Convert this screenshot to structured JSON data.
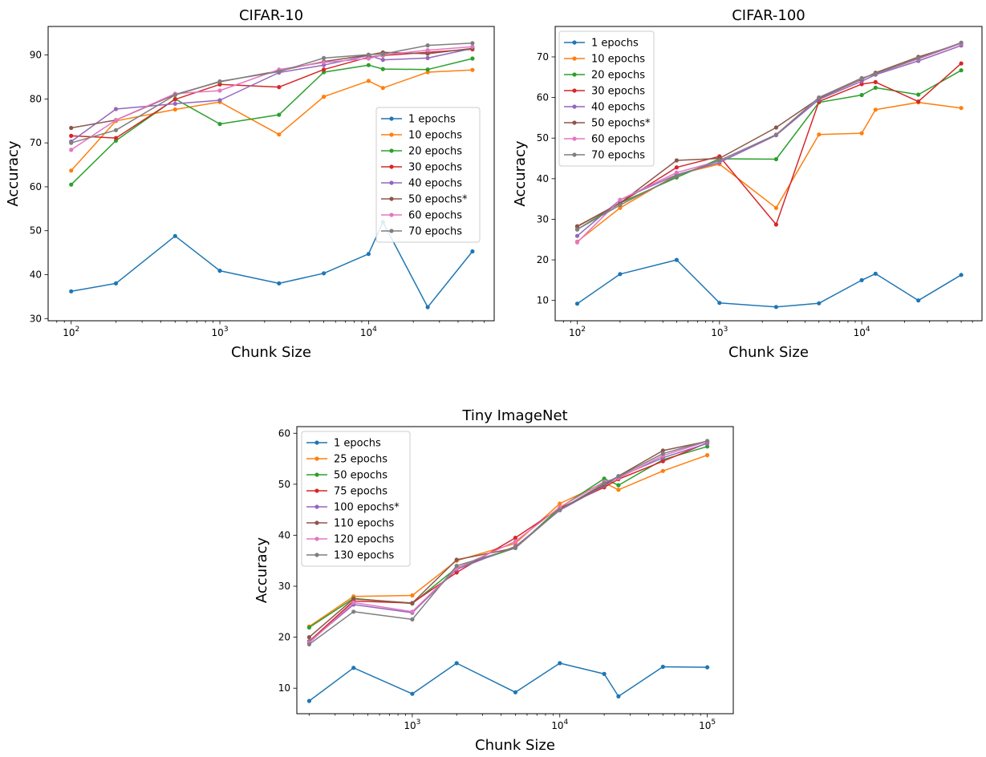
{
  "palette": [
    "#1f77b4",
    "#ff7f0e",
    "#2ca02c",
    "#d62728",
    "#9467bd",
    "#8c564b",
    "#e377c2",
    "#7f7f7f"
  ],
  "chart_data": [
    {
      "type": "line",
      "title": "CIFAR-10",
      "xlabel": "Chunk Size",
      "ylabel": "Accuracy",
      "xscale": "log",
      "xlim": [
        70,
        70000
      ],
      "ylim": [
        29.5,
        96.5
      ],
      "xticks": [
        100,
        1000,
        10000
      ],
      "xtick_labels": [
        {
          "base": "10",
          "exp": "2"
        },
        {
          "base": "10",
          "exp": "3"
        },
        {
          "base": "10",
          "exp": "4"
        }
      ],
      "yticks": [
        30,
        40,
        50,
        60,
        70,
        80,
        90
      ],
      "ytick_labels": [
        "30",
        "40",
        "50",
        "60",
        "70",
        "80",
        "90"
      ],
      "legend_position": "center-right",
      "x": [
        100,
        200,
        500,
        1000,
        2500,
        5000,
        10000,
        12500,
        25000,
        50000
      ],
      "series": [
        {
          "name": "1 epochs",
          "values": [
            36.2,
            38.0,
            48.8,
            40.9,
            38.0,
            40.3,
            44.7,
            52.0,
            32.6,
            45.3
          ]
        },
        {
          "name": "10 epochs",
          "values": [
            63.7,
            75.0,
            77.6,
            79.3,
            71.9,
            80.5,
            84.1,
            82.5,
            86.1,
            86.6
          ]
        },
        {
          "name": "20 epochs",
          "values": [
            60.5,
            70.5,
            80.0,
            74.3,
            76.4,
            86.1,
            87.7,
            86.8,
            86.7,
            89.2
          ]
        },
        {
          "name": "30 epochs",
          "values": [
            71.6,
            71.1,
            79.9,
            83.3,
            82.7,
            86.7,
            89.5,
            89.9,
            90.6,
            91.3
          ]
        },
        {
          "name": "40 epochs",
          "values": [
            70.3,
            77.7,
            78.9,
            79.7,
            86.0,
            87.7,
            89.9,
            88.9,
            89.3,
            91.5
          ]
        },
        {
          "name": "50 epochs*",
          "values": [
            73.4,
            75.2,
            81.0,
            83.9,
            86.4,
            88.5,
            90.0,
            90.6,
            90.3,
            91.5
          ]
        },
        {
          "name": "60 epochs",
          "values": [
            68.4,
            75.2,
            81.2,
            81.9,
            86.7,
            88.3,
            89.2,
            90.0,
            91.1,
            91.9
          ]
        },
        {
          "name": "70 epochs",
          "values": [
            70.0,
            72.9,
            80.9,
            84.0,
            86.2,
            89.3,
            90.1,
            90.2,
            92.2,
            92.7
          ]
        }
      ]
    },
    {
      "type": "line",
      "title": "CIFAR-100",
      "xlabel": "Chunk Size",
      "ylabel": "Accuracy",
      "xscale": "log",
      "xlim": [
        70,
        70000
      ],
      "ylim": [
        5,
        77.5
      ],
      "xticks": [
        100,
        1000,
        10000
      ],
      "xtick_labels": [
        {
          "base": "10",
          "exp": "2"
        },
        {
          "base": "10",
          "exp": "3"
        },
        {
          "base": "10",
          "exp": "4"
        }
      ],
      "yticks": [
        10,
        20,
        30,
        40,
        50,
        60,
        70
      ],
      "ytick_labels": [
        "10",
        "20",
        "30",
        "40",
        "50",
        "60",
        "70"
      ],
      "legend_position": "top-left",
      "x": [
        100,
        200,
        500,
        1000,
        2500,
        5000,
        10000,
        12500,
        25000,
        50000
      ],
      "series": [
        {
          "name": "1 epochs",
          "values": [
            9.2,
            16.5,
            20.0,
            9.4,
            8.4,
            9.3,
            15.0,
            16.6,
            10.0,
            16.3
          ]
        },
        {
          "name": "10 epochs",
          "values": [
            24.5,
            32.8,
            41.0,
            43.6,
            32.8,
            50.9,
            51.2,
            57.0,
            58.8,
            57.4
          ]
        },
        {
          "name": "20 epochs",
          "values": [
            27.5,
            34.0,
            40.3,
            44.9,
            44.8,
            58.8,
            60.6,
            62.4,
            60.7,
            66.7
          ]
        },
        {
          "name": "30 epochs",
          "values": [
            28.2,
            34.0,
            42.8,
            45.5,
            28.7,
            59.0,
            63.3,
            63.8,
            59.0,
            68.4
          ]
        },
        {
          "name": "40 epochs",
          "values": [
            25.9,
            34.8,
            41.0,
            44.0,
            50.7,
            59.5,
            64.0,
            65.6,
            69.0,
            72.8
          ]
        },
        {
          "name": "50 epochs*",
          "values": [
            28.3,
            34.0,
            44.5,
            45.0,
            52.6,
            59.8,
            64.5,
            66.1,
            70.0,
            73.3
          ]
        },
        {
          "name": "60 epochs",
          "values": [
            24.3,
            34.8,
            41.5,
            44.4,
            50.9,
            60.0,
            64.7,
            65.8,
            69.5,
            73.3
          ]
        },
        {
          "name": "70 epochs",
          "values": [
            27.5,
            33.5,
            40.7,
            44.5,
            50.8,
            60.0,
            64.8,
            65.8,
            69.7,
            73.5
          ]
        }
      ]
    },
    {
      "type": "line",
      "title": "Tiny ImageNet",
      "xlabel": "Chunk Size",
      "ylabel": "Accuracy",
      "xscale": "log",
      "xlim": [
        165,
        150000
      ],
      "ylim": [
        5,
        61.3
      ],
      "xticks": [
        1000,
        10000,
        100000
      ],
      "xtick_labels": [
        {
          "base": "10",
          "exp": "3"
        },
        {
          "base": "10",
          "exp": "4"
        },
        {
          "base": "10",
          "exp": "5"
        }
      ],
      "yticks": [
        10,
        20,
        30,
        40,
        50,
        60
      ],
      "ytick_labels": [
        "10",
        "20",
        "30",
        "40",
        "50",
        "60"
      ],
      "legend_position": "top-left",
      "x": [
        200,
        400,
        1000,
        2000,
        5000,
        10000,
        20000,
        25000,
        50000,
        100000
      ],
      "series": [
        {
          "name": "1 epochs",
          "values": [
            7.5,
            14.0,
            8.9,
            14.9,
            9.2,
            14.9,
            12.8,
            8.4,
            14.2,
            14.1
          ]
        },
        {
          "name": "25 epochs",
          "values": [
            22.1,
            28.0,
            28.2,
            35.0,
            38.4,
            46.2,
            50.3,
            48.9,
            52.6,
            55.7
          ]
        },
        {
          "name": "50 epochs",
          "values": [
            21.9,
            27.6,
            26.6,
            33.6,
            37.5,
            45.4,
            51.1,
            49.8,
            54.8,
            57.4
          ]
        },
        {
          "name": "75 epochs",
          "values": [
            19.2,
            27.1,
            26.7,
            32.7,
            39.5,
            45.3,
            49.4,
            51.0,
            54.5,
            58.1
          ]
        },
        {
          "name": "100 epochs*",
          "values": [
            19.1,
            26.4,
            24.8,
            33.3,
            37.8,
            44.9,
            49.7,
            51.4,
            55.2,
            58.0
          ]
        },
        {
          "name": "110 epochs",
          "values": [
            20.0,
            27.5,
            26.7,
            35.2,
            37.5,
            45.0,
            49.9,
            51.6,
            56.6,
            58.4
          ]
        },
        {
          "name": "120 epochs",
          "values": [
            18.9,
            26.8,
            25.0,
            33.5,
            38.8,
            45.5,
            50.5,
            51.2,
            55.6,
            58.4
          ]
        },
        {
          "name": "130 epochs",
          "values": [
            18.6,
            25.0,
            23.5,
            34.0,
            37.5,
            45.0,
            50.2,
            51.5,
            56.0,
            58.5
          ]
        }
      ]
    }
  ]
}
